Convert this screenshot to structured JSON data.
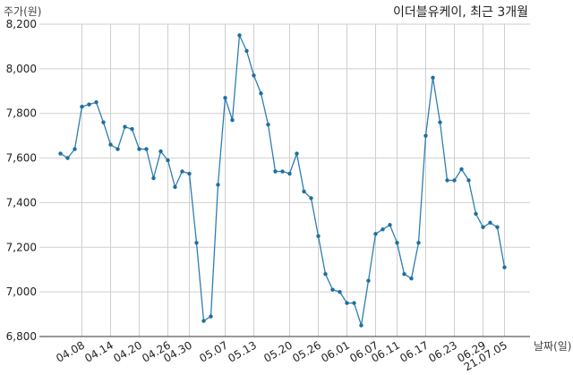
{
  "chart_data": {
    "type": "line",
    "title": "이더블유케이, 최근 3개월",
    "xlabel": "날짜(일)",
    "ylabel": "주가(원)",
    "ylim": [
      6800,
      8200
    ],
    "yticks": [
      "6,800",
      "7,000",
      "7,200",
      "7,400",
      "7,600",
      "7,800",
      "8,000",
      "8,200"
    ],
    "xtick_labels": [
      "04.08",
      "04.14",
      "04.20",
      "04.26",
      "04.30",
      "05.07",
      "05.13",
      "05.20",
      "05.26",
      "06.01",
      "06.07",
      "06.11",
      "06.17",
      "06.23",
      "06.29",
      "21.07.05"
    ],
    "grid": true,
    "colors": {
      "line": "#2e7fb0",
      "marker": "#1f6e9e",
      "grid": "#cfcfcf"
    },
    "series": [
      {
        "values": [
          7620,
          7600,
          7640,
          7830,
          7840,
          7850,
          7760,
          7660,
          7640,
          7740,
          7730,
          7640,
          7640,
          7510,
          7630,
          7590,
          7470,
          7540,
          7530,
          7220,
          6870,
          6890,
          7480,
          7870,
          7770,
          8150,
          8080,
          7970,
          7890,
          7750,
          7540,
          7540,
          7530,
          7620,
          7450,
          7420,
          7250,
          7080,
          7010,
          7000,
          6950,
          6950,
          6850,
          7050,
          7260,
          7280,
          7300,
          7220,
          7080,
          7060,
          7220,
          7700,
          7960,
          7760,
          7500,
          7500,
          7550,
          7500,
          7350,
          7290,
          7310,
          7290,
          7110
        ]
      }
    ]
  }
}
